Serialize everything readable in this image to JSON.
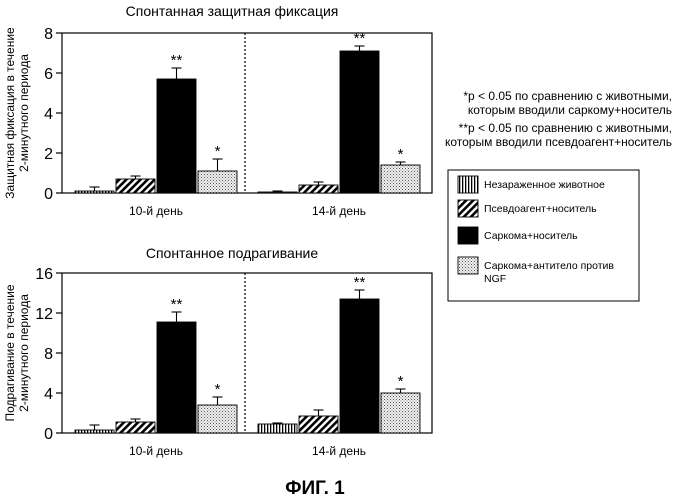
{
  "figure_label": "ФИГ. 1",
  "legend": {
    "items": [
      {
        "label_lines": [
          "Незараженное животное"
        ],
        "fill": "vertical"
      },
      {
        "label_lines": [
          "Псевдоагент+носитель"
        ],
        "fill": "diagonal"
      },
      {
        "label_lines": [
          "Саркома+носитель"
        ],
        "fill": "solid"
      },
      {
        "label_lines": [
          "Саркома+антитело против",
          "NGF"
        ],
        "fill": "dots"
      }
    ]
  },
  "notes": [
    {
      "lines": [
        "*p < 0.05 по сравнению с животными,",
        "которым вводили саркому+носитель"
      ]
    },
    {
      "lines": [
        "**p < 0.05 по сравнению с животными,",
        "которым вводили псевдоагент+носитель"
      ]
    }
  ],
  "chart_data": [
    {
      "type": "bar",
      "title": "Спонтанная защитная фиксация",
      "ylabel_lines": [
        "Защитная фиксация в течение",
        "2-минутного периода"
      ],
      "ylim": [
        0,
        8
      ],
      "yticks": [
        0,
        2,
        4,
        6,
        8
      ],
      "groups": [
        "10-й день",
        "14-й день"
      ],
      "series": [
        {
          "name": "Незараженное животное",
          "values": [
            0.1,
            0.05
          ],
          "errors": [
            0.2,
            0.05
          ],
          "markers": [
            "",
            ""
          ]
        },
        {
          "name": "Псевдоагент+носитель",
          "values": [
            0.7,
            0.4
          ],
          "errors": [
            0.15,
            0.15
          ],
          "markers": [
            "",
            ""
          ]
        },
        {
          "name": "Саркома+носитель",
          "values": [
            5.7,
            7.1
          ],
          "errors": [
            0.55,
            0.25
          ],
          "markers": [
            "**",
            "**"
          ]
        },
        {
          "name": "Саркома+антитело против NGF",
          "values": [
            1.1,
            1.4
          ],
          "errors": [
            0.6,
            0.15
          ],
          "markers": [
            "*",
            "*"
          ]
        }
      ]
    },
    {
      "type": "bar",
      "title": "Спонтанное подрагивание",
      "ylabel_lines": [
        "Подрагивание в течение",
        "2-минутного периода"
      ],
      "ylim": [
        0,
        16
      ],
      "yticks": [
        0,
        4,
        8,
        12,
        16
      ],
      "groups": [
        "10-й день",
        "14-й день"
      ],
      "series": [
        {
          "name": "Незараженное животное",
          "values": [
            0.3,
            0.9
          ],
          "errors": [
            0.5,
            0.1
          ],
          "markers": [
            "",
            ""
          ]
        },
        {
          "name": "Псевдоагент+носитель",
          "values": [
            1.1,
            1.7
          ],
          "errors": [
            0.3,
            0.6
          ],
          "markers": [
            "",
            ""
          ]
        },
        {
          "name": "Саркома+носитель",
          "values": [
            11.1,
            13.4
          ],
          "errors": [
            1.0,
            0.9
          ],
          "markers": [
            "**",
            "**"
          ]
        },
        {
          "name": "Саркома+антитело против NGF",
          "values": [
            2.8,
            4.0
          ],
          "errors": [
            0.8,
            0.4
          ],
          "markers": [
            "*",
            "*"
          ]
        }
      ]
    }
  ]
}
